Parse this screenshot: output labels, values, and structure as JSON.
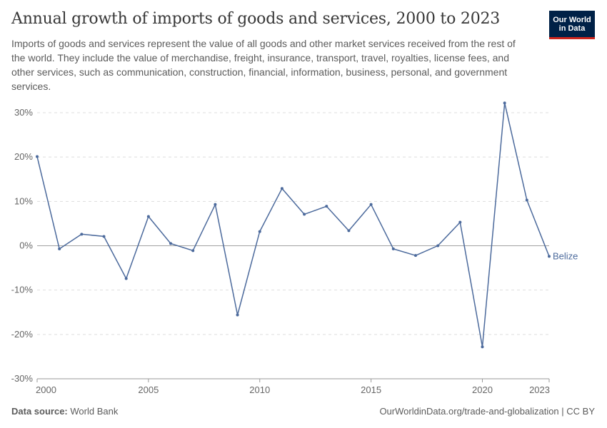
{
  "header": {
    "title": "Annual growth of imports of goods and services, 2000 to 2023",
    "subtitle": "Imports of goods and services represent the value of all goods and other market services received from the rest of the world. They include the value of merchandise, freight, insurance, transport, travel, royalties, license fees, and other services, such as communication, construction, financial, information, business, personal, and government services."
  },
  "logo": {
    "line1": "Our World",
    "line2": "in Data",
    "bg_color": "#002147",
    "accent_color": "#ce261e"
  },
  "footer": {
    "source_label": "Data source:",
    "source_value": "World Bank",
    "url": "OurWorldinData.org/trade-and-globalization | CC BY"
  },
  "chart_data": {
    "type": "line",
    "title": "Annual growth of imports of goods and services, 2000 to 2023",
    "xlabel": "",
    "ylabel": "",
    "xlim": [
      2000,
      2023
    ],
    "ylim": [
      -30,
      30
    ],
    "yticks": [
      -30,
      -20,
      -10,
      0,
      10,
      20,
      30
    ],
    "ytick_labels": [
      "-30%",
      "-20%",
      "-10%",
      "0%",
      "10%",
      "20%",
      "30%"
    ],
    "xticks": [
      2000,
      2005,
      2010,
      2015,
      2020,
      2023
    ],
    "xtick_labels": [
      "2000",
      "2005",
      "2010",
      "2015",
      "2020",
      "2023"
    ],
    "grid": true,
    "legend": "end-of-line label",
    "line_color": "#4c6a9c",
    "series": [
      {
        "name": "Belize",
        "x": [
          2000,
          2001,
          2002,
          2003,
          2004,
          2005,
          2006,
          2007,
          2008,
          2009,
          2010,
          2011,
          2012,
          2013,
          2014,
          2015,
          2016,
          2017,
          2018,
          2019,
          2020,
          2021,
          2022,
          2023
        ],
        "values": [
          20.1,
          -0.7,
          2.6,
          2.1,
          -7.4,
          6.6,
          0.5,
          -1.1,
          9.3,
          -15.6,
          3.2,
          12.9,
          7.1,
          8.9,
          3.4,
          9.3,
          -0.7,
          -2.2,
          0.0,
          5.3,
          -22.8,
          32.2,
          10.3,
          -2.4
        ]
      }
    ]
  }
}
